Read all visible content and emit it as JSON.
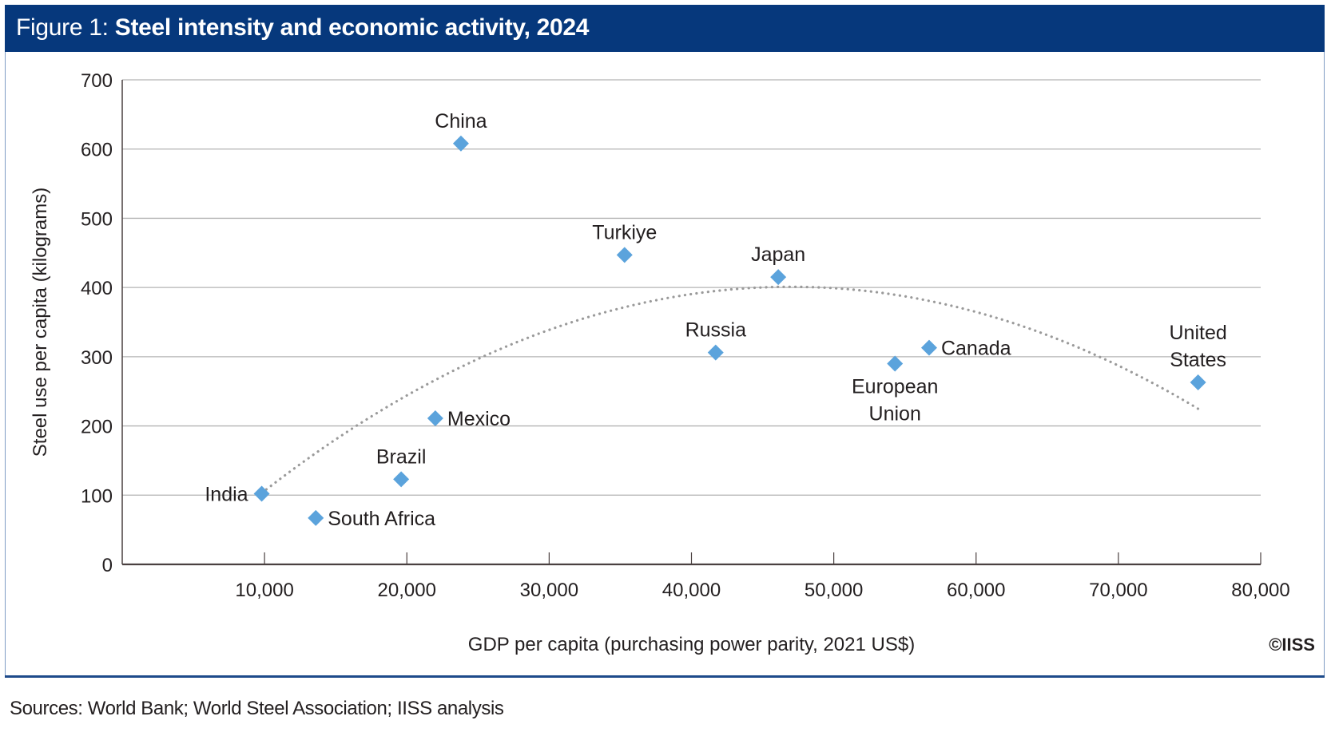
{
  "header": {
    "figure_label": "Figure 1: ",
    "title": "Steel intensity and economic activity, 2024"
  },
  "copyright": "©IISS",
  "sources": "Sources: World Bank; World Steel Association; IISS analysis",
  "colors": {
    "header_bg": "#06387c",
    "marker": "#5ba3dc",
    "trendline": "#9a9a9a",
    "gridline": "#b3b3b3",
    "axis": "#4a4040"
  },
  "chart_data": {
    "type": "scatter",
    "title": "Steel intensity and economic activity, 2024",
    "xlabel": "GDP per capita (purchasing power parity, 2021 US$)",
    "ylabel": "Steel use per capita (kilograms)",
    "xlim": [
      0,
      80000
    ],
    "ylim": [
      0,
      700
    ],
    "x_ticks": [
      10000,
      20000,
      30000,
      40000,
      50000,
      60000,
      70000,
      80000
    ],
    "x_tick_labels": [
      "10,000",
      "20,000",
      "30,000",
      "40,000",
      "50,000",
      "60,000",
      "70,000",
      "80,000"
    ],
    "y_ticks": [
      0,
      100,
      200,
      300,
      400,
      500,
      600,
      700
    ],
    "y_tick_labels": [
      "0",
      "100",
      "200",
      "300",
      "400",
      "500",
      "600",
      "700"
    ],
    "grid": "horizontal",
    "legend": "none",
    "points": [
      {
        "label": "India",
        "x": 9800,
        "y": 102,
        "label_pos": "left"
      },
      {
        "label": "South Africa",
        "x": 13600,
        "y": 67,
        "label_pos": "right"
      },
      {
        "label": "Brazil",
        "x": 19600,
        "y": 123,
        "label_pos": "above"
      },
      {
        "label": "Mexico",
        "x": 22000,
        "y": 211,
        "label_pos": "right"
      },
      {
        "label": "China",
        "x": 23800,
        "y": 608,
        "label_pos": "above"
      },
      {
        "label": "Turkiye",
        "x": 35300,
        "y": 447,
        "label_pos": "above"
      },
      {
        "label": "Russia",
        "x": 41700,
        "y": 306,
        "label_pos": "above"
      },
      {
        "label": "Japan",
        "x": 46100,
        "y": 415,
        "label_pos": "above"
      },
      {
        "label": "European Union",
        "label_lines": [
          "European",
          "Union"
        ],
        "x": 54300,
        "y": 290,
        "label_pos": "below"
      },
      {
        "label": "Canada",
        "x": 56700,
        "y": 313,
        "label_pos": "right"
      },
      {
        "label": "United States",
        "label_lines": [
          "United",
          "States"
        ],
        "x": 75600,
        "y": 263,
        "label_pos": "above"
      }
    ],
    "trendline": {
      "type": "polynomial-2",
      "style": "dotted",
      "vertex_x": 47000,
      "vertex_y": 401,
      "a": -2.153e-07,
      "x_start": 9800,
      "x_end": 75700
    }
  }
}
